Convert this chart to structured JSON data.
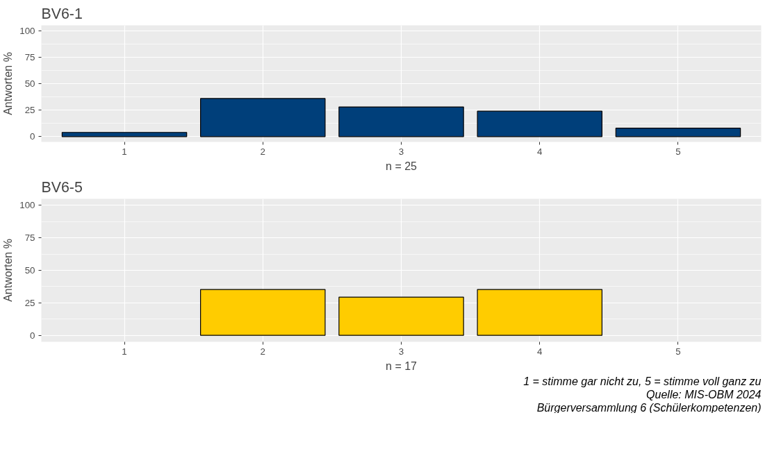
{
  "chart_data": [
    {
      "type": "bar",
      "title": "BV6-1",
      "xlabel": "n = 25",
      "ylabel": "Antworten %",
      "categories": [
        "1",
        "2",
        "3",
        "4",
        "5"
      ],
      "values": [
        4,
        36,
        28,
        24,
        8
      ],
      "color": "#003f7a",
      "ylim": [
        -5,
        105
      ],
      "yticks": [
        0,
        25,
        50,
        75,
        100
      ],
      "grid": true
    },
    {
      "type": "bar",
      "title": "BV6-5",
      "xlabel": "n = 17",
      "ylabel": "Antworten %",
      "categories": [
        "1",
        "2",
        "3",
        "4",
        "5"
      ],
      "values": [
        null,
        35.3,
        29.4,
        35.3,
        null
      ],
      "color": "#ffcc00",
      "ylim": [
        -5,
        105
      ],
      "yticks": [
        0,
        25,
        50,
        75,
        100
      ],
      "grid": true,
      "annotations": [
        "1 = stimme gar nicht zu, 5 = stimme voll ganz zu",
        "Quelle: MIS-OBM 2024",
        "Bürgerversammlung 6 (Schülerkompetenzen)"
      ]
    }
  ]
}
